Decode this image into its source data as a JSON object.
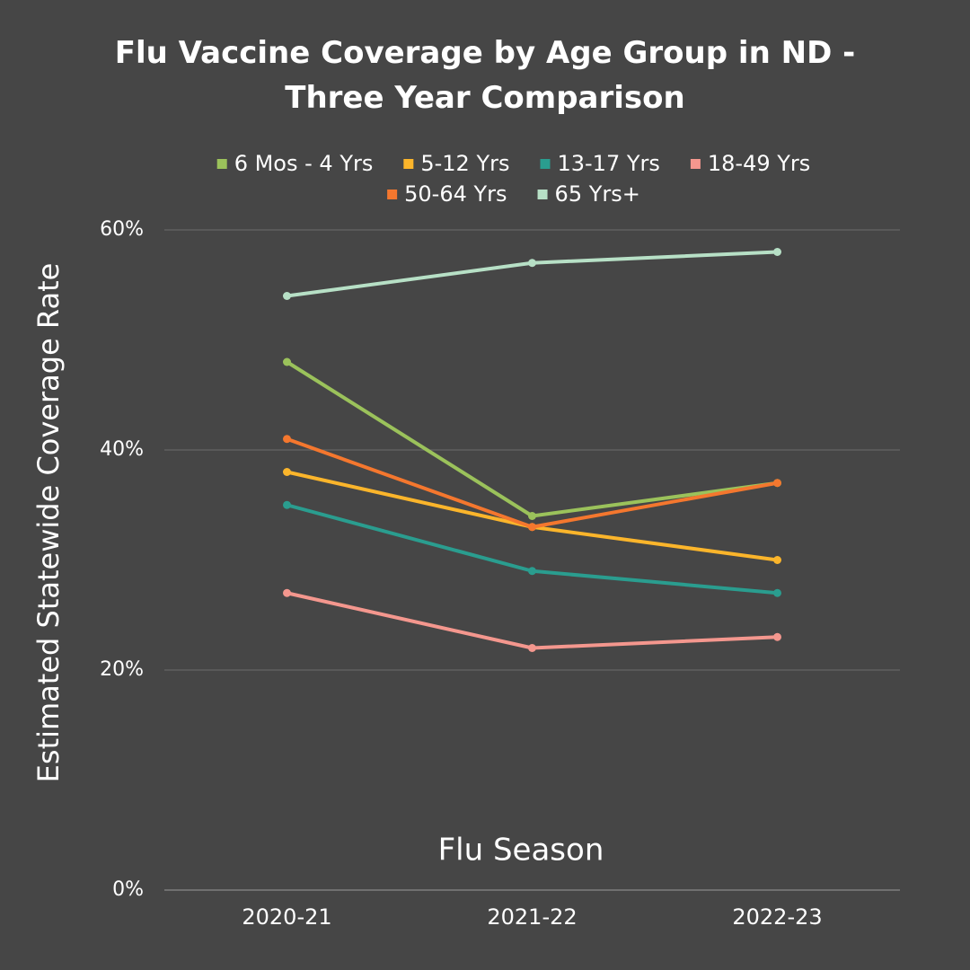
{
  "chart_data": {
    "type": "line",
    "title": "Flu Vaccine Coverage by Age Group in ND - Three Year Comparison",
    "x_label": "Flu Season",
    "y_label": "Estimated Statewide Coverage Rate",
    "categories": [
      "2020-21",
      "2021-22",
      "2022-23"
    ],
    "series": [
      {
        "name": "6 Mos - 4 Yrs",
        "color": "#9bc25b",
        "values": [
          48,
          34,
          37
        ]
      },
      {
        "name": "5-12 Yrs",
        "color": "#fbb52b",
        "values": [
          38,
          33,
          30
        ]
      },
      {
        "name": "13-17 Yrs",
        "color": "#2a9d8f",
        "values": [
          35,
          29,
          27
        ]
      },
      {
        "name": "18-49 Yrs",
        "color": "#f4978e",
        "values": [
          27,
          22,
          23
        ]
      },
      {
        "name": "50-64 Yrs",
        "color": "#f4772e",
        "values": [
          41,
          33,
          37
        ]
      },
      {
        "name": "65 Yrs+",
        "color": "#b7e0c6",
        "values": [
          54,
          57,
          58
        ]
      }
    ],
    "ylim": [
      0,
      60
    ],
    "yticks": [
      {
        "value": 0,
        "label": "0%"
      },
      {
        "value": 20,
        "label": "20%"
      },
      {
        "value": 40,
        "label": "40%"
      },
      {
        "value": 60,
        "label": "60%"
      }
    ],
    "grid": true
  }
}
